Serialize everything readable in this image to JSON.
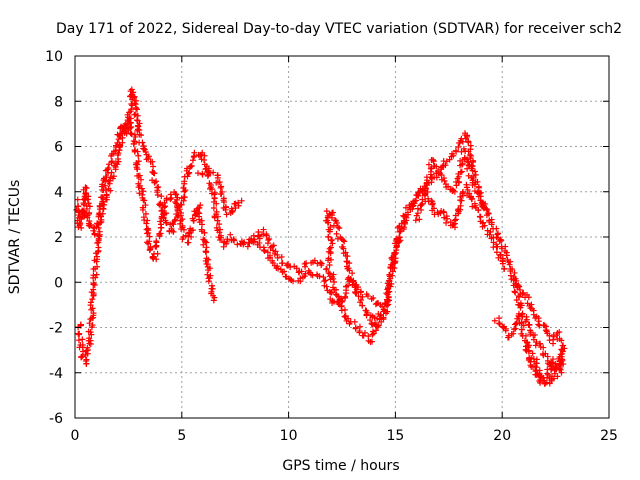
{
  "chart_data": {
    "type": "scatter",
    "title": "Day 171 of 2022, Sidereal Day-to-day VTEC variation (SDTVAR) for receiver sch2",
    "xlabel": "GPS time / hours",
    "ylabel": "SDTVAR / TECUs",
    "xlim": [
      0,
      25
    ],
    "ylim": [
      -6,
      10
    ],
    "x_ticks": [
      0,
      5,
      10,
      15,
      20,
      25
    ],
    "x_tick_labels": [
      "0",
      "5",
      "10",
      "15",
      "20",
      "25"
    ],
    "y_ticks": [
      -6,
      -4,
      -2,
      0,
      2,
      4,
      6,
      8,
      10
    ],
    "y_tick_labels": [
      "-6",
      "-4",
      "-2",
      "0",
      "2",
      "4",
      "6",
      "8",
      "10"
    ],
    "grid": true,
    "marker": "+",
    "color": "#ff0000",
    "series": [
      {
        "name": "sch2",
        "segments": [
          [
            [
              0.1,
              3.6
            ],
            [
              0.2,
              2.4
            ],
            [
              0.3,
              3.2
            ],
            [
              0.4,
              2.8
            ],
            [
              0.5,
              4.2
            ],
            [
              0.7,
              2.6
            ],
            [
              0.9,
              2.2
            ],
            [
              1.0,
              2.6
            ],
            [
              1.2,
              3.2
            ],
            [
              1.4,
              4.6
            ],
            [
              1.7,
              5.4
            ],
            [
              2.0,
              6.2
            ],
            [
              2.2,
              7.0
            ],
            [
              2.4,
              6.6
            ],
            [
              2.6,
              7.8
            ],
            [
              2.7,
              8.5
            ],
            [
              2.8,
              8.0
            ],
            [
              3.0,
              6.6
            ],
            [
              3.2,
              5.8
            ],
            [
              3.5,
              5.4
            ],
            [
              3.7,
              4.6
            ],
            [
              3.9,
              4.0
            ],
            [
              4.1,
              3.2
            ],
            [
              4.3,
              2.6
            ],
            [
              4.5,
              2.2
            ],
            [
              4.7,
              2.8
            ],
            [
              5.0,
              3.6
            ],
            [
              5.3,
              5.0
            ],
            [
              5.6,
              5.6
            ],
            [
              5.9,
              5.7
            ],
            [
              6.1,
              5.2
            ],
            [
              6.3,
              4.6
            ],
            [
              6.5,
              3.8
            ],
            [
              6.6,
              3.0
            ],
            [
              6.8,
              1.9
            ],
            [
              7.0,
              1.6
            ],
            [
              7.3,
              2.0
            ],
            [
              7.6,
              1.8
            ],
            [
              8.0,
              1.7
            ],
            [
              8.4,
              2.0
            ],
            [
              8.8,
              2.3
            ],
            [
              9.2,
              1.6
            ],
            [
              9.6,
              1.0
            ],
            [
              10.0,
              0.7
            ],
            [
              10.4,
              0.5
            ],
            [
              10.8,
              0.7
            ],
            [
              11.2,
              0.9
            ],
            [
              11.6,
              0.7
            ],
            [
              12.0,
              0.3
            ],
            [
              12.3,
              -0.6
            ],
            [
              12.6,
              -1.4
            ],
            [
              13.0,
              -1.8
            ],
            [
              13.4,
              -2.2
            ],
            [
              13.8,
              -2.6
            ],
            [
              14.1,
              -2.2
            ],
            [
              14.4,
              -1.4
            ],
            [
              14.6,
              -0.7
            ],
            [
              14.8,
              0.3
            ],
            [
              15.0,
              1.4
            ],
            [
              15.2,
              2.3
            ],
            [
              15.5,
              3.0
            ],
            [
              15.8,
              3.6
            ],
            [
              16.2,
              4.0
            ],
            [
              16.6,
              4.5
            ],
            [
              17.0,
              4.9
            ],
            [
              17.4,
              5.3
            ],
            [
              17.8,
              5.8
            ],
            [
              18.1,
              6.2
            ],
            [
              18.3,
              6.6
            ],
            [
              18.5,
              5.8
            ],
            [
              18.7,
              4.6
            ],
            [
              19.0,
              3.8
            ],
            [
              19.3,
              3.0
            ],
            [
              19.6,
              2.4
            ],
            [
              19.9,
              1.8
            ],
            [
              20.2,
              1.2
            ],
            [
              20.5,
              0.3
            ],
            [
              20.7,
              -0.6
            ],
            [
              21.0,
              -1.4
            ],
            [
              21.3,
              -2.1
            ],
            [
              21.6,
              -2.6
            ],
            [
              21.9,
              -3.1
            ],
            [
              22.2,
              -3.6
            ],
            [
              22.5,
              -3.9
            ],
            [
              22.8,
              -3.4
            ]
          ],
          [
            [
              0.2,
              -1.8
            ],
            [
              0.3,
              -2.8
            ],
            [
              0.4,
              -3.4
            ],
            [
              0.5,
              -3.6
            ],
            [
              0.6,
              -3.2
            ],
            [
              0.7,
              -2.4
            ],
            [
              0.8,
              -1.0
            ],
            [
              0.9,
              0.0
            ],
            [
              1.0,
              1.2
            ],
            [
              1.1,
              2.2
            ],
            [
              1.3,
              3.4
            ],
            [
              1.6,
              4.2
            ],
            [
              2.0,
              5.6
            ],
            [
              2.3,
              6.8
            ],
            [
              2.5,
              7.2
            ],
            [
              2.8,
              6.2
            ],
            [
              3.0,
              4.6
            ],
            [
              3.2,
              3.4
            ],
            [
              3.4,
              2.2
            ],
            [
              3.5,
              1.4
            ],
            [
              3.7,
              1.0
            ],
            [
              4.0,
              2.4
            ],
            [
              4.3,
              3.6
            ],
            [
              4.6,
              4.0
            ],
            [
              4.9,
              3.0
            ],
            [
              5.1,
              2.0
            ],
            [
              5.3,
              1.8
            ],
            [
              5.5,
              2.6
            ],
            [
              5.8,
              3.4
            ],
            [
              6.0,
              2.2
            ],
            [
              6.2,
              0.8
            ],
            [
              6.4,
              -0.4
            ],
            [
              6.5,
              -0.8
            ]
          ],
          [
            [
              5.8,
              4.8
            ],
            [
              6.2,
              5.0
            ],
            [
              6.6,
              4.8
            ],
            [
              6.8,
              4.2
            ],
            [
              7.0,
              3.4
            ],
            [
              7.2,
              3.0
            ],
            [
              7.5,
              3.4
            ],
            [
              7.8,
              3.6
            ]
          ],
          [
            [
              7.8,
              1.7
            ],
            [
              8.5,
              1.9
            ],
            [
              9.0,
              1.3
            ],
            [
              9.5,
              0.6
            ],
            [
              10.0,
              0.2
            ],
            [
              10.5,
              0.0
            ],
            [
              11.0,
              0.4
            ],
            [
              11.5,
              0.2
            ],
            [
              11.8,
              -0.2
            ],
            [
              12.2,
              -1.0
            ],
            [
              12.6,
              -0.6
            ],
            [
              12.9,
              0.2
            ],
            [
              13.2,
              -0.4
            ],
            [
              13.6,
              -1.2
            ],
            [
              13.9,
              -1.8
            ],
            [
              14.2,
              -1.4
            ]
          ],
          [
            [
              11.9,
              0.8
            ],
            [
              12.0,
              1.6
            ],
            [
              11.8,
              3.0
            ],
            [
              12.0,
              3.2
            ],
            [
              12.2,
              2.6
            ],
            [
              12.4,
              2.0
            ],
            [
              12.6,
              1.6
            ],
            [
              12.8,
              0.6
            ],
            [
              13.0,
              0.0
            ],
            [
              13.2,
              -0.4
            ],
            [
              13.5,
              -0.6
            ],
            [
              13.9,
              -0.8
            ],
            [
              14.3,
              -1.0
            ]
          ],
          [
            [
              14.5,
              -1.6
            ],
            [
              14.8,
              0.6
            ],
            [
              15.1,
              1.8
            ],
            [
              15.4,
              2.6
            ],
            [
              15.7,
              3.2
            ],
            [
              16.0,
              3.8
            ],
            [
              16.3,
              4.2
            ],
            [
              16.6,
              3.6
            ],
            [
              16.8,
              3.0
            ],
            [
              17.1,
              3.2
            ],
            [
              17.4,
              2.8
            ],
            [
              17.7,
              2.4
            ],
            [
              18.0,
              3.4
            ],
            [
              18.3,
              4.2
            ],
            [
              18.6,
              3.6
            ],
            [
              18.9,
              3.0
            ],
            [
              19.2,
              2.4
            ],
            [
              19.5,
              2.0
            ],
            [
              19.8,
              1.4
            ],
            [
              20.1,
              0.6
            ]
          ],
          [
            [
              16.0,
              2.8
            ],
            [
              16.3,
              3.6
            ],
            [
              16.5,
              4.4
            ],
            [
              16.7,
              5.4
            ],
            [
              16.9,
              4.8
            ],
            [
              17.2,
              4.6
            ],
            [
              17.5,
              4.2
            ],
            [
              17.8,
              4.0
            ],
            [
              18.0,
              4.8
            ],
            [
              18.2,
              5.8
            ],
            [
              18.4,
              5.2
            ],
            [
              18.6,
              4.4
            ],
            [
              18.9,
              4.0
            ],
            [
              19.3,
              3.2
            ]
          ],
          [
            [
              19.7,
              -1.6
            ],
            [
              20.0,
              -2.0
            ],
            [
              20.3,
              -2.4
            ],
            [
              20.6,
              -2.0
            ],
            [
              20.8,
              -1.4
            ],
            [
              21.0,
              -2.4
            ],
            [
              21.2,
              -3.2
            ],
            [
              21.4,
              -3.6
            ],
            [
              21.6,
              -4.0
            ],
            [
              21.8,
              -4.4
            ],
            [
              22.0,
              -4.2
            ],
            [
              22.2,
              -3.8
            ],
            [
              22.4,
              -3.4
            ],
            [
              22.6,
              -3.8
            ],
            [
              22.8,
              -3.0
            ]
          ],
          [
            [
              20.5,
              0.2
            ],
            [
              20.8,
              -0.4
            ],
            [
              21.1,
              -0.6
            ],
            [
              21.4,
              -1.2
            ],
            [
              21.7,
              -1.8
            ],
            [
              22.0,
              -2.0
            ],
            [
              22.3,
              -2.6
            ],
            [
              22.6,
              -2.2
            ],
            [
              22.8,
              -2.8
            ],
            [
              22.9,
              -3.4
            ],
            [
              22.7,
              -4.0
            ],
            [
              22.4,
              -4.2
            ],
            [
              22.1,
              -4.6
            ],
            [
              21.8,
              -4.2
            ],
            [
              21.5,
              -3.4
            ],
            [
              21.2,
              -2.8
            ]
          ]
        ]
      }
    ]
  }
}
